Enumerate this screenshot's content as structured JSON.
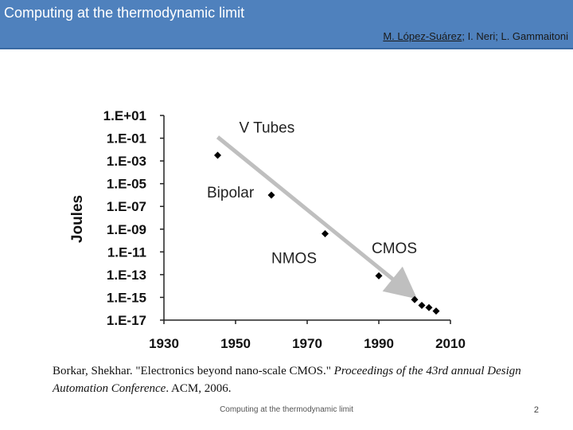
{
  "header": {
    "title": "Computing at the thermodynamic limit",
    "author_first": "M. López-Suárez",
    "authors_rest": "; I. Neri; L. Gammaitoni"
  },
  "chart_data": {
    "type": "scatter",
    "title": "",
    "xlabel": "",
    "ylabel": "Joules",
    "xlim": [
      1930,
      2010
    ],
    "ylim_log10": [
      -17,
      1
    ],
    "x_ticks": [
      "1930",
      "1950",
      "1970",
      "1990",
      "2010"
    ],
    "y_ticks": [
      "1.E+01",
      "1.E-01",
      "1.E-03",
      "1.E-05",
      "1.E-07",
      "1.E-09",
      "1.E-11",
      "1.E-13",
      "1.E-15",
      "1.E-17"
    ],
    "points": [
      {
        "x": 1945,
        "log10_y": -2.5
      },
      {
        "x": 1960,
        "log10_y": -6.0
      },
      {
        "x": 1975,
        "log10_y": -9.4
      },
      {
        "x": 1990,
        "log10_y": -13.1
      },
      {
        "x": 2000,
        "log10_y": -15.2
      },
      {
        "x": 2002,
        "log10_y": -15.7
      },
      {
        "x": 2004,
        "log10_y": -15.9
      },
      {
        "x": 2006,
        "log10_y": -16.2
      }
    ],
    "annotations": [
      {
        "text": "V Tubes",
        "x": 1951,
        "log10_y": -0.5
      },
      {
        "text": "Bipolar",
        "x": 1942,
        "log10_y": -6.2
      },
      {
        "text": "NMOS",
        "x": 1960,
        "log10_y": -12.0
      },
      {
        "text": "CMOS",
        "x": 1988,
        "log10_y": -11.1
      }
    ],
    "trend_arrow": {
      "from": {
        "x": 1945,
        "log10_y": -0.9
      },
      "to": {
        "x": 1999,
        "log10_y": -14.7
      }
    }
  },
  "citation": {
    "text": "Borkar, Shekhar. \"Electronics beyond nano-scale CMOS.\" ",
    "venue": "Proceedings of the 43rd annual Design Automation Conference",
    "suffix": ". ACM, 2006."
  },
  "footer": {
    "text": "Computing at the thermodynamic limit",
    "page": "2"
  }
}
